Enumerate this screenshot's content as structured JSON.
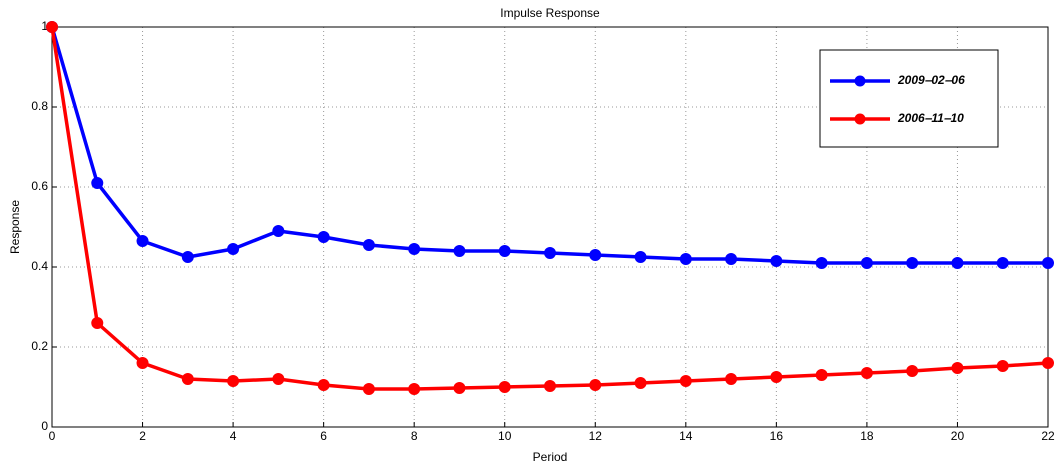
{
  "chart_data": {
    "type": "line",
    "title": "Impulse Response",
    "xlabel": "Period",
    "ylabel": "Response",
    "x": [
      0,
      1,
      2,
      3,
      4,
      5,
      6,
      7,
      8,
      9,
      10,
      11,
      12,
      13,
      14,
      15,
      16,
      17,
      18,
      19,
      20,
      21,
      22
    ],
    "series": [
      {
        "name": "2009‒02‒06",
        "color": "#0000ff",
        "values": [
          1,
          0.61,
          0.465,
          0.425,
          0.445,
          0.49,
          0.475,
          0.455,
          0.445,
          0.44,
          0.44,
          0.435,
          0.43,
          0.425,
          0.42,
          0.42,
          0.415,
          0.41,
          0.41,
          0.41,
          0.41,
          0.41,
          0.41
        ]
      },
      {
        "name": "2006‒11‒10",
        "color": "#ff0000",
        "values": [
          1,
          0.26,
          0.16,
          0.12,
          0.115,
          0.12,
          0.105,
          0.095,
          0.095,
          0.0975,
          0.1,
          0.1025,
          0.105,
          0.11,
          0.115,
          0.12,
          0.125,
          0.13,
          0.135,
          0.14,
          0.1475,
          0.1525,
          0.16
        ]
      }
    ],
    "xlim": [
      0,
      22
    ],
    "xticks": [
      0,
      2,
      4,
      6,
      8,
      10,
      12,
      14,
      16,
      18,
      20,
      22
    ],
    "ylim": [
      0,
      1
    ],
    "yticks": [
      0,
      0.2,
      0.4,
      0.6,
      0.8,
      1
    ],
    "grid": true,
    "legend": "upper right"
  }
}
